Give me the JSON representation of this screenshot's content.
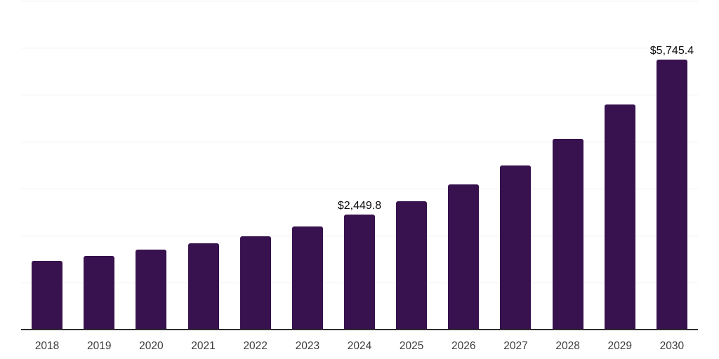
{
  "chart_data": {
    "type": "bar",
    "title": "",
    "xlabel": "",
    "ylabel": "",
    "categories": [
      "2018",
      "2019",
      "2020",
      "2021",
      "2022",
      "2023",
      "2024",
      "2025",
      "2026",
      "2027",
      "2028",
      "2029",
      "2030"
    ],
    "values": [
      1460,
      1570,
      1700,
      1830,
      1990,
      2200,
      2449.8,
      2730,
      3090,
      3490,
      4060,
      4790,
      5745.4
    ],
    "data_labels": [
      null,
      null,
      null,
      null,
      null,
      null,
      "$2,449.8",
      null,
      null,
      null,
      null,
      null,
      "$5,745.4"
    ],
    "ylim": [
      0,
      7000
    ],
    "gridline_step": 1000,
    "grid": true,
    "legend": false,
    "y_axis_labels_visible": false,
    "colors": {
      "bar": "#37124E",
      "gridline": "#F0F0F0",
      "axis_line": "#2E2E2E",
      "tick_label": "#3D3D3D",
      "data_label": "#0A0A0A",
      "background": "#FFFFFF"
    }
  }
}
